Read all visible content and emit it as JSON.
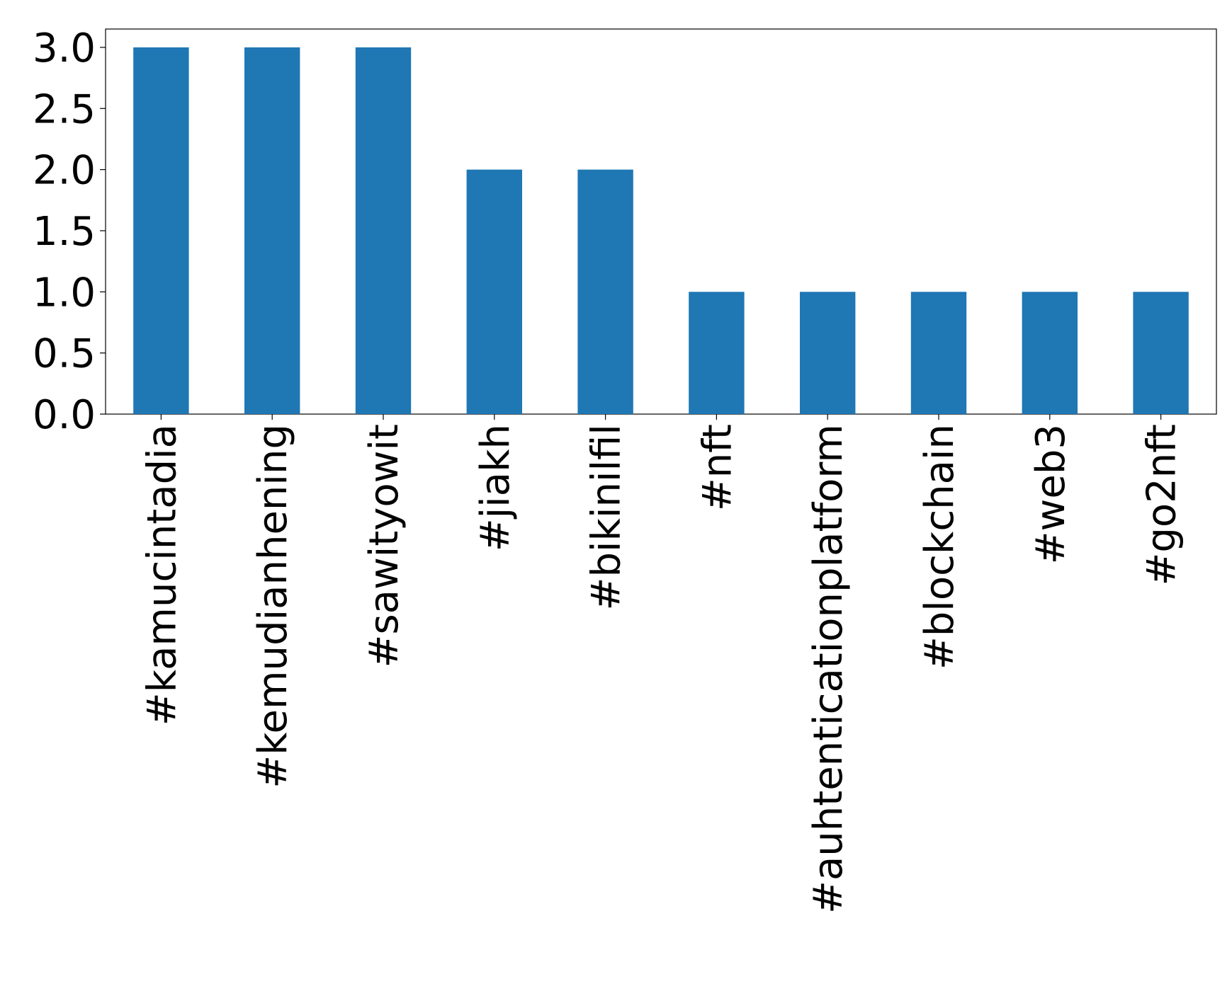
{
  "chart_data": {
    "type": "bar",
    "categories": [
      "#kamucintadia",
      "#kemudianhening",
      "#sawityowit",
      "#jiakh",
      "#bikinilfil",
      "#nft",
      "#auhtenticationplatform",
      "#blockchain",
      "#web3",
      "#go2nft"
    ],
    "values": [
      3,
      3,
      3,
      2,
      2,
      1,
      1,
      1,
      1,
      1
    ],
    "color": "#1f77b4",
    "ylim": [
      0,
      3.15
    ],
    "yticks": [
      {
        "value": 0,
        "label": "0.0"
      },
      {
        "value": 0.5,
        "label": "0.5"
      },
      {
        "value": 1,
        "label": "1.0"
      },
      {
        "value": 1.5,
        "label": "1.5"
      },
      {
        "value": 2,
        "label": "2.0"
      },
      {
        "value": 2.5,
        "label": "2.5"
      },
      {
        "value": 3,
        "label": "3.0"
      }
    ],
    "grid": false
  }
}
